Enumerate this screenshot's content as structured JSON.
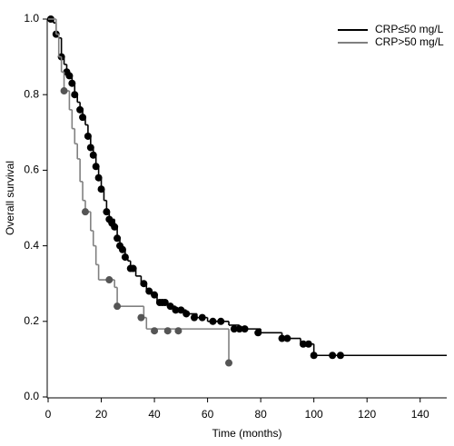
{
  "chart_data": {
    "type": "kaplan-meier",
    "x_label": "Time (months)",
    "y_label": "Overall survival",
    "xlim": [
      0,
      150
    ],
    "ylim": [
      0,
      1.0
    ],
    "xticks": [
      0,
      20,
      40,
      60,
      80,
      100,
      120,
      140
    ],
    "yticks": [
      {
        "value": 0,
        "label": "0.0"
      },
      0.2,
      0.4,
      0.6,
      0.8,
      {
        "value": 1,
        "label": "1.0"
      }
    ],
    "legend": "top-right",
    "series": [
      {
        "name": "CRP≤50 mg/L",
        "color": "#000000",
        "x": [
          0,
          2,
          3,
          4,
          5,
          6,
          7,
          8,
          9,
          10,
          11,
          12,
          13,
          14,
          15,
          16,
          17,
          18,
          19,
          20,
          21,
          22,
          23,
          25,
          26,
          27,
          28,
          29,
          30,
          31,
          33,
          35,
          37,
          39,
          41,
          45,
          48,
          52,
          56,
          60,
          68,
          72,
          80,
          88,
          95,
          100,
          150
        ],
        "values": [
          1.0,
          0.99,
          0.96,
          0.95,
          0.9,
          0.88,
          0.86,
          0.85,
          0.83,
          0.8,
          0.78,
          0.76,
          0.74,
          0.72,
          0.69,
          0.66,
          0.64,
          0.61,
          0.58,
          0.55,
          0.52,
          0.49,
          0.47,
          0.45,
          0.42,
          0.4,
          0.39,
          0.37,
          0.36,
          0.34,
          0.32,
          0.3,
          0.28,
          0.27,
          0.25,
          0.24,
          0.23,
          0.22,
          0.21,
          0.2,
          0.19,
          0.18,
          0.17,
          0.155,
          0.14,
          0.11,
          0.11
        ],
        "censored": {
          "x": [
            1,
            3,
            5,
            7,
            8,
            9,
            10,
            12,
            13,
            15,
            16,
            17,
            18,
            19,
            20,
            22,
            23,
            24,
            25,
            26,
            27,
            28,
            29,
            31,
            32,
            36,
            38,
            40,
            42,
            43,
            44,
            46,
            48,
            50,
            52,
            55,
            58,
            62,
            65,
            70,
            72,
            74,
            79,
            88,
            90,
            96,
            98,
            100,
            107,
            110
          ],
          "values": [
            1.0,
            0.96,
            0.9,
            0.86,
            0.85,
            0.83,
            0.8,
            0.76,
            0.74,
            0.69,
            0.66,
            0.64,
            0.61,
            0.58,
            0.55,
            0.49,
            0.47,
            0.46,
            0.45,
            0.42,
            0.4,
            0.39,
            0.37,
            0.34,
            0.34,
            0.3,
            0.28,
            0.27,
            0.25,
            0.25,
            0.25,
            0.24,
            0.23,
            0.23,
            0.22,
            0.21,
            0.21,
            0.2,
            0.2,
            0.18,
            0.18,
            0.18,
            0.17,
            0.155,
            0.155,
            0.14,
            0.14,
            0.11,
            0.11,
            0.11
          ]
        }
      },
      {
        "name": "CRP>50 mg/L",
        "color": "#808080",
        "x": [
          0,
          3,
          4,
          5,
          6,
          8,
          9,
          10,
          11,
          12,
          13,
          14,
          16,
          17,
          18,
          19,
          25,
          26,
          36,
          37,
          68
        ],
        "values": [
          1.0,
          0.96,
          0.9,
          0.86,
          0.81,
          0.76,
          0.71,
          0.67,
          0.63,
          0.57,
          0.52,
          0.49,
          0.44,
          0.4,
          0.35,
          0.31,
          0.29,
          0.24,
          0.21,
          0.18,
          0.09
        ],
        "censored": {
          "x": [
            6,
            14,
            23,
            26,
            35,
            40,
            45,
            49,
            68
          ],
          "values": [
            0.81,
            0.49,
            0.31,
            0.24,
            0.21,
            0.175,
            0.175,
            0.175,
            0.09
          ]
        }
      }
    ]
  }
}
